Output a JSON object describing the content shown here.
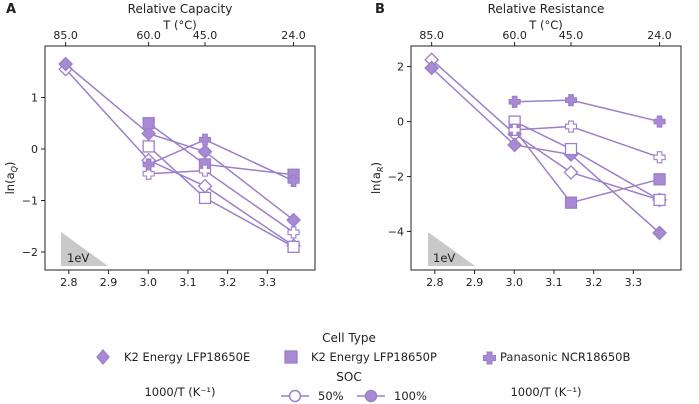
{
  "chart_data": [
    {
      "panel": "A",
      "type": "line",
      "title": "Relative Capacity",
      "top_xlabel": "T (°C)",
      "top_ticks": [
        {
          "x": 2.792,
          "label": "85.0"
        },
        {
          "x": 3.001,
          "label": "60.0"
        },
        {
          "x": 3.143,
          "label": "45.0"
        },
        {
          "x": 3.366,
          "label": "24.0"
        }
      ],
      "xlabel": "1000/T (K⁻¹)",
      "ylabel": "ln(a",
      "ylabel_sub": "Q",
      "ylabel_close": ")",
      "xlim": [
        2.74,
        3.42
      ],
      "ylim": [
        -2.35,
        2.0
      ],
      "x_tick_labels": [
        {
          "x": 2.8,
          "label": "2.8"
        },
        {
          "x": 2.9,
          "label": "2.9"
        },
        {
          "x": 3.0,
          "label": "3.0"
        },
        {
          "x": 3.1,
          "label": "3.1"
        },
        {
          "x": 3.2,
          "label": "3.2"
        },
        {
          "x": 3.3,
          "label": "3.3"
        }
      ],
      "y_tick_labels": [
        {
          "y": 1,
          "label": "1"
        },
        {
          "y": 0,
          "label": "0"
        },
        {
          "y": -1,
          "label": "−1"
        },
        {
          "y": -2,
          "label": "−2"
        }
      ],
      "x": [
        2.792,
        3.001,
        3.143,
        3.366
      ],
      "series": [
        {
          "name": "K2 Energy LFP18650E 50%",
          "marker": "diamond",
          "filled": false,
          "values": [
            1.55,
            -0.22,
            -0.72,
            -1.88
          ]
        },
        {
          "name": "K2 Energy LFP18650E 100%",
          "marker": "diamond",
          "filled": true,
          "values": [
            1.65,
            0.3,
            -0.05,
            -1.38
          ]
        },
        {
          "name": "K2 Energy LFP18650P 50%",
          "marker": "square",
          "filled": false,
          "values": [
            null,
            0.05,
            -0.95,
            -1.9
          ]
        },
        {
          "name": "K2 Energy LFP18650P 100%",
          "marker": "square",
          "filled": true,
          "values": [
            null,
            0.5,
            -0.3,
            -0.5
          ]
        },
        {
          "name": "Panasonic NCR18650B 50%",
          "marker": "plus",
          "filled": false,
          "values": [
            null,
            -0.48,
            -0.42,
            -1.62
          ]
        },
        {
          "name": "Panasonic NCR18650B 100%",
          "marker": "plus",
          "filled": true,
          "values": [
            null,
            -0.3,
            0.18,
            -0.62
          ]
        }
      ],
      "annotation": "1eV"
    },
    {
      "panel": "B",
      "type": "line",
      "title": "Relative Resistance",
      "top_xlabel": "T (°C)",
      "top_ticks": [
        {
          "x": 2.792,
          "label": "85.0"
        },
        {
          "x": 3.001,
          "label": "60.0"
        },
        {
          "x": 3.143,
          "label": "45.0"
        },
        {
          "x": 3.366,
          "label": "24.0"
        }
      ],
      "xlabel": "1000/T (K⁻¹)",
      "ylabel": "ln(a",
      "ylabel_sub": "R",
      "ylabel_close": ")",
      "xlim": [
        2.74,
        3.42
      ],
      "ylim": [
        -5.4,
        2.75
      ],
      "x_tick_labels": [
        {
          "x": 2.8,
          "label": "2.8"
        },
        {
          "x": 2.9,
          "label": "2.9"
        },
        {
          "x": 3.0,
          "label": "3.0"
        },
        {
          "x": 3.1,
          "label": "3.1"
        },
        {
          "x": 3.2,
          "label": "3.2"
        },
        {
          "x": 3.3,
          "label": "3.3"
        }
      ],
      "y_tick_labels": [
        {
          "y": 2,
          "label": "2"
        },
        {
          "y": 0,
          "label": "0"
        },
        {
          "y": -2,
          "label": "−2"
        },
        {
          "y": -4,
          "label": "−4"
        }
      ],
      "x": [
        2.792,
        3.001,
        3.143,
        3.366
      ],
      "series": [
        {
          "name": "K2 Energy LFP18650E 50%",
          "marker": "diamond",
          "filled": false,
          "values": [
            2.25,
            -0.45,
            -1.85,
            -2.85
          ]
        },
        {
          "name": "K2 Energy LFP18650E 100%",
          "marker": "diamond",
          "filled": true,
          "values": [
            1.95,
            -0.85,
            -1.2,
            -4.05
          ]
        },
        {
          "name": "K2 Energy LFP18650P 50%",
          "marker": "square",
          "filled": false,
          "values": [
            null,
            0.0,
            -1.0,
            -2.85
          ]
        },
        {
          "name": "K2 Energy LFP18650P 100%",
          "marker": "square",
          "filled": true,
          "values": [
            null,
            -0.3,
            -2.95,
            -2.1
          ]
        },
        {
          "name": "Panasonic NCR18650B 50%",
          "marker": "plus",
          "filled": false,
          "values": [
            null,
            -0.3,
            -0.18,
            -1.3
          ]
        },
        {
          "name": "Panasonic NCR18650B 100%",
          "marker": "plus",
          "filled": true,
          "values": [
            null,
            0.72,
            0.78,
            0.0
          ]
        }
      ],
      "annotation": "1eV"
    }
  ],
  "legend": {
    "cell_type_title": "Cell Type",
    "cell_types": [
      {
        "label": "K2 Energy LFP18650E",
        "marker": "diamond"
      },
      {
        "label": "K2 Energy LFP18650P",
        "marker": "square"
      },
      {
        "label": "Panasonic NCR18650B",
        "marker": "plus"
      }
    ],
    "soc_title": "SOC",
    "soc": [
      {
        "label": "50%",
        "filled": false
      },
      {
        "label": "100%",
        "filled": true
      }
    ]
  },
  "colors": {
    "series": "#9b7fc9",
    "fill": "#a88ad4",
    "triangle": "#c9c9c9"
  }
}
